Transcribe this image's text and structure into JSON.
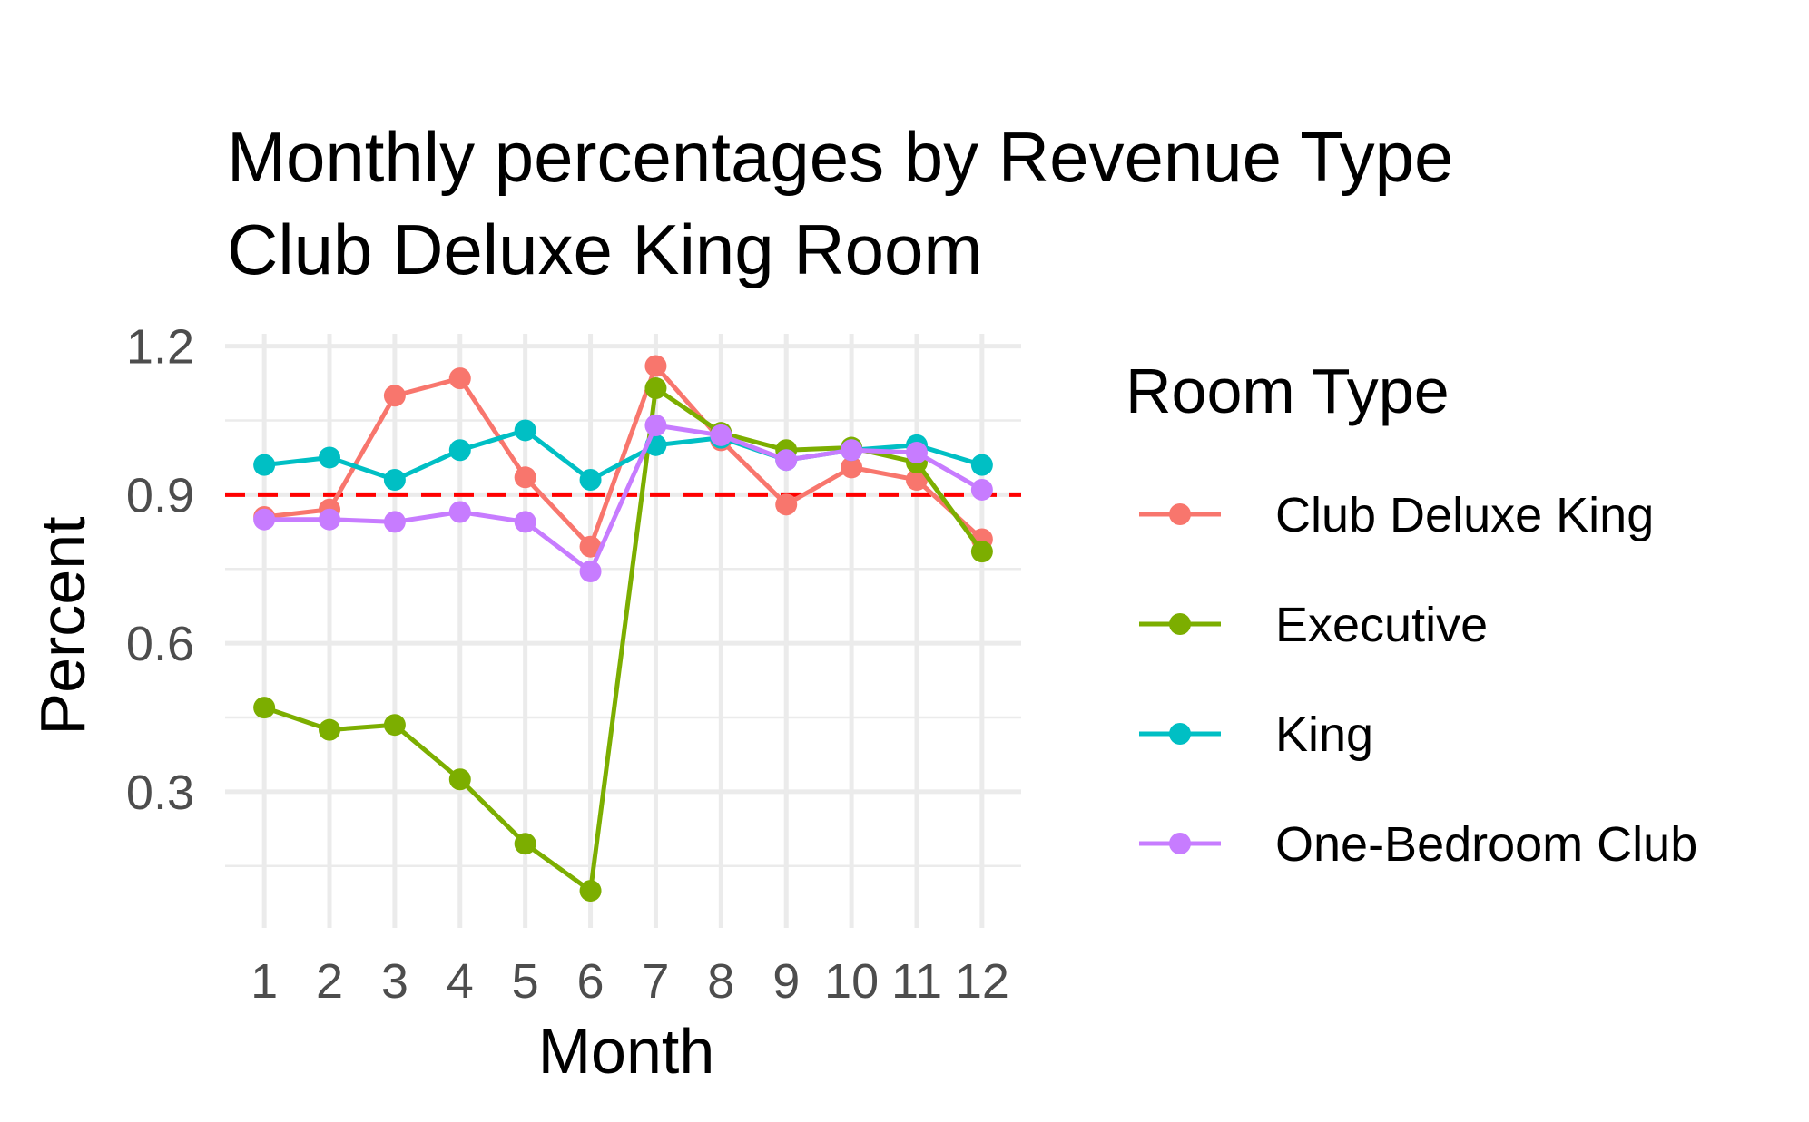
{
  "chart_data": {
    "type": "line",
    "title": "Monthly percentages by Revenue Type",
    "subtitle": "Club Deluxe King Room",
    "xlabel": "Month",
    "ylabel": "Percent",
    "x": [
      1,
      2,
      3,
      4,
      5,
      6,
      7,
      8,
      9,
      10,
      11,
      12
    ],
    "x_tick_labels": [
      "1",
      "2",
      "3",
      "4",
      "5",
      "6",
      "7",
      "8",
      "9",
      "10",
      "11",
      "12"
    ],
    "xlim": [
      0.4,
      12.6
    ],
    "ylim": [
      0.025,
      1.225
    ],
    "y_ticks": [
      0.3,
      0.6,
      0.9,
      1.2
    ],
    "y_tick_labels": [
      "0.3",
      "0.6",
      "0.9",
      "1.2"
    ],
    "grid": true,
    "reference_line": {
      "y": 0.9,
      "color": "#ff0000",
      "style": "dashed"
    },
    "legend": {
      "title": "Room Type",
      "position": "right"
    },
    "series": [
      {
        "name": "Club Deluxe King",
        "color": "#F8766D",
        "values": [
          0.855,
          0.87,
          1.1,
          1.135,
          0.935,
          0.795,
          1.16,
          1.01,
          0.88,
          0.955,
          0.93,
          0.81
        ]
      },
      {
        "name": "Executive",
        "color": "#7CAE00",
        "values": [
          0.47,
          0.425,
          0.435,
          0.325,
          0.195,
          0.1,
          1.115,
          1.025,
          0.99,
          0.995,
          0.965,
          0.785
        ]
      },
      {
        "name": "King",
        "color": "#00BFC4",
        "values": [
          0.96,
          0.975,
          0.93,
          0.99,
          1.03,
          0.93,
          1.0,
          1.015,
          0.97,
          0.99,
          1.0,
          0.96
        ]
      },
      {
        "name": "One-Bedroom Club",
        "color": "#C77CFF",
        "values": [
          0.85,
          0.85,
          0.845,
          0.865,
          0.845,
          0.745,
          1.04,
          1.02,
          0.97,
          0.99,
          0.985,
          0.91
        ]
      }
    ]
  }
}
